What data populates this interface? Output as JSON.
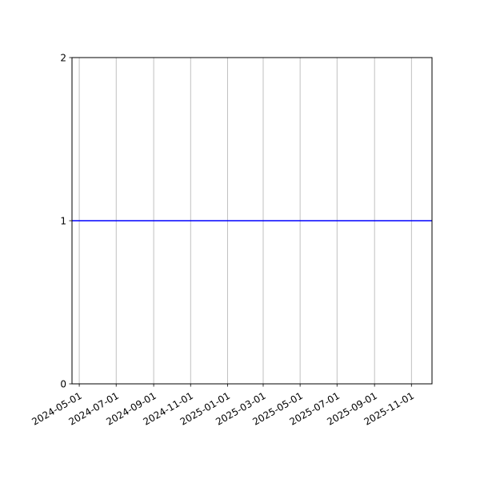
{
  "chart_data": {
    "type": "line",
    "title": "",
    "xlabel": "",
    "ylabel": "",
    "x_axis_type": "date",
    "xlim": [
      "2024-04-19",
      "2025-12-05"
    ],
    "ylim": [
      0,
      2
    ],
    "x_ticks": [
      "2024-05-01",
      "2024-07-01",
      "2024-09-01",
      "2024-11-01",
      "2025-01-01",
      "2025-03-01",
      "2025-05-01",
      "2025-07-01",
      "2025-09-01",
      "2025-11-01"
    ],
    "y_ticks": [
      0,
      1,
      2
    ],
    "y_tick_labels": [
      "0",
      "1",
      "2"
    ],
    "grid": {
      "x": true,
      "y": false
    },
    "series": [
      {
        "x": [
          "2024-04-19",
          "2025-12-05"
        ],
        "y": [
          1,
          1
        ],
        "color": "#0000ff"
      }
    ]
  }
}
